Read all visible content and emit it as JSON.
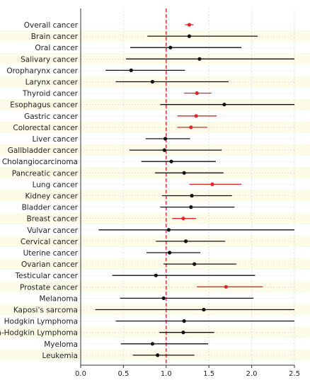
{
  "chart_data": {
    "type": "forest",
    "title": "",
    "xlabel": "",
    "ylabel": "",
    "xlim": [
      0.0,
      2.5
    ],
    "x_ticks": [
      "0.0",
      "0.5",
      "1.0",
      "1.5",
      "2.0",
      "2.5"
    ],
    "x_tick_values": [
      0.0,
      0.5,
      1.0,
      1.5,
      2.0,
      2.5
    ],
    "reference_line": 1.0,
    "grid": true,
    "colors": {
      "significant": "#e0262a",
      "nonsignificant": "#111111",
      "reference": "#e0262a",
      "band": "#fbfbe8",
      "grid": "#dddddd"
    },
    "rows": [
      {
        "label": "Overall cancer",
        "estimate": 1.27,
        "lower": 1.22,
        "upper": 1.32,
        "significant": true
      },
      {
        "label": "Brain cancer",
        "estimate": 1.27,
        "lower": 0.78,
        "upper": 2.07,
        "significant": false
      },
      {
        "label": "Oral cancer",
        "estimate": 1.05,
        "lower": 0.58,
        "upper": 1.88,
        "significant": false
      },
      {
        "label": "Salivary cancer",
        "estimate": 1.39,
        "lower": 0.53,
        "upper": 2.5,
        "significant": false
      },
      {
        "label": "Oropharynx cancer",
        "estimate": 0.59,
        "lower": 0.29,
        "upper": 1.22,
        "significant": false
      },
      {
        "label": "Larynx cancer",
        "estimate": 0.84,
        "lower": 0.41,
        "upper": 1.73,
        "significant": false
      },
      {
        "label": "Thyroid cancer",
        "estimate": 1.36,
        "lower": 1.21,
        "upper": 1.53,
        "significant": true
      },
      {
        "label": "Esophagus cancer",
        "estimate": 1.68,
        "lower": 0.93,
        "upper": 2.5,
        "significant": false
      },
      {
        "label": "Gastric cancer",
        "estimate": 1.35,
        "lower": 1.13,
        "upper": 1.59,
        "significant": true
      },
      {
        "label": "Colorectal cancer",
        "estimate": 1.29,
        "lower": 1.13,
        "upper": 1.48,
        "significant": true
      },
      {
        "label": "Liver cancer",
        "estimate": 0.99,
        "lower": 0.76,
        "upper": 1.28,
        "significant": false
      },
      {
        "label": "Gallbladder cancer",
        "estimate": 0.98,
        "lower": 0.57,
        "upper": 1.65,
        "significant": false
      },
      {
        "label": "Cholangiocarcinoma",
        "estimate": 1.06,
        "lower": 0.71,
        "upper": 1.58,
        "significant": false
      },
      {
        "label": "Pancreatic cancer",
        "estimate": 1.21,
        "lower": 0.87,
        "upper": 1.67,
        "significant": false
      },
      {
        "label": "Lung cancer",
        "estimate": 1.54,
        "lower": 1.27,
        "upper": 1.88,
        "significant": true
      },
      {
        "label": "Kidney cancer",
        "estimate": 1.3,
        "lower": 0.95,
        "upper": 1.77,
        "significant": false
      },
      {
        "label": "Bladder cancer",
        "estimate": 1.29,
        "lower": 0.93,
        "upper": 1.8,
        "significant": false
      },
      {
        "label": "Breast cancer",
        "estimate": 1.2,
        "lower": 1.07,
        "upper": 1.35,
        "significant": true
      },
      {
        "label": "Vulvar cancer",
        "estimate": 1.03,
        "lower": 0.21,
        "upper": 2.5,
        "significant": false
      },
      {
        "label": "Cervical cancer",
        "estimate": 1.23,
        "lower": 0.88,
        "upper": 1.69,
        "significant": false
      },
      {
        "label": "Uterine cancer",
        "estimate": 1.04,
        "lower": 0.77,
        "upper": 1.4,
        "significant": false
      },
      {
        "label": "Ovarian cancer",
        "estimate": 1.33,
        "lower": 0.97,
        "upper": 1.82,
        "significant": false
      },
      {
        "label": "Testicular cancer",
        "estimate": 0.88,
        "lower": 0.37,
        "upper": 2.04,
        "significant": false
      },
      {
        "label": "Prostate cancer",
        "estimate": 1.7,
        "lower": 1.36,
        "upper": 2.13,
        "significant": true
      },
      {
        "label": "Melanoma",
        "estimate": 0.97,
        "lower": 0.46,
        "upper": 2.02,
        "significant": false
      },
      {
        "label": "Kaposi's sarcoma",
        "estimate": 1.44,
        "lower": 0.17,
        "upper": 2.5,
        "significant": false
      },
      {
        "label": "Hodgkin Lymphoma",
        "estimate": 1.21,
        "lower": 0.41,
        "upper": 2.5,
        "significant": false
      },
      {
        "label": "Non-Hodgkin Lymphoma",
        "estimate": 1.2,
        "lower": 0.92,
        "upper": 1.56,
        "significant": false
      },
      {
        "label": "Myeloma",
        "estimate": 0.84,
        "lower": 0.47,
        "upper": 1.49,
        "significant": false
      },
      {
        "label": "Leukemia",
        "estimate": 0.9,
        "lower": 0.61,
        "upper": 1.33,
        "significant": false
      }
    ]
  }
}
